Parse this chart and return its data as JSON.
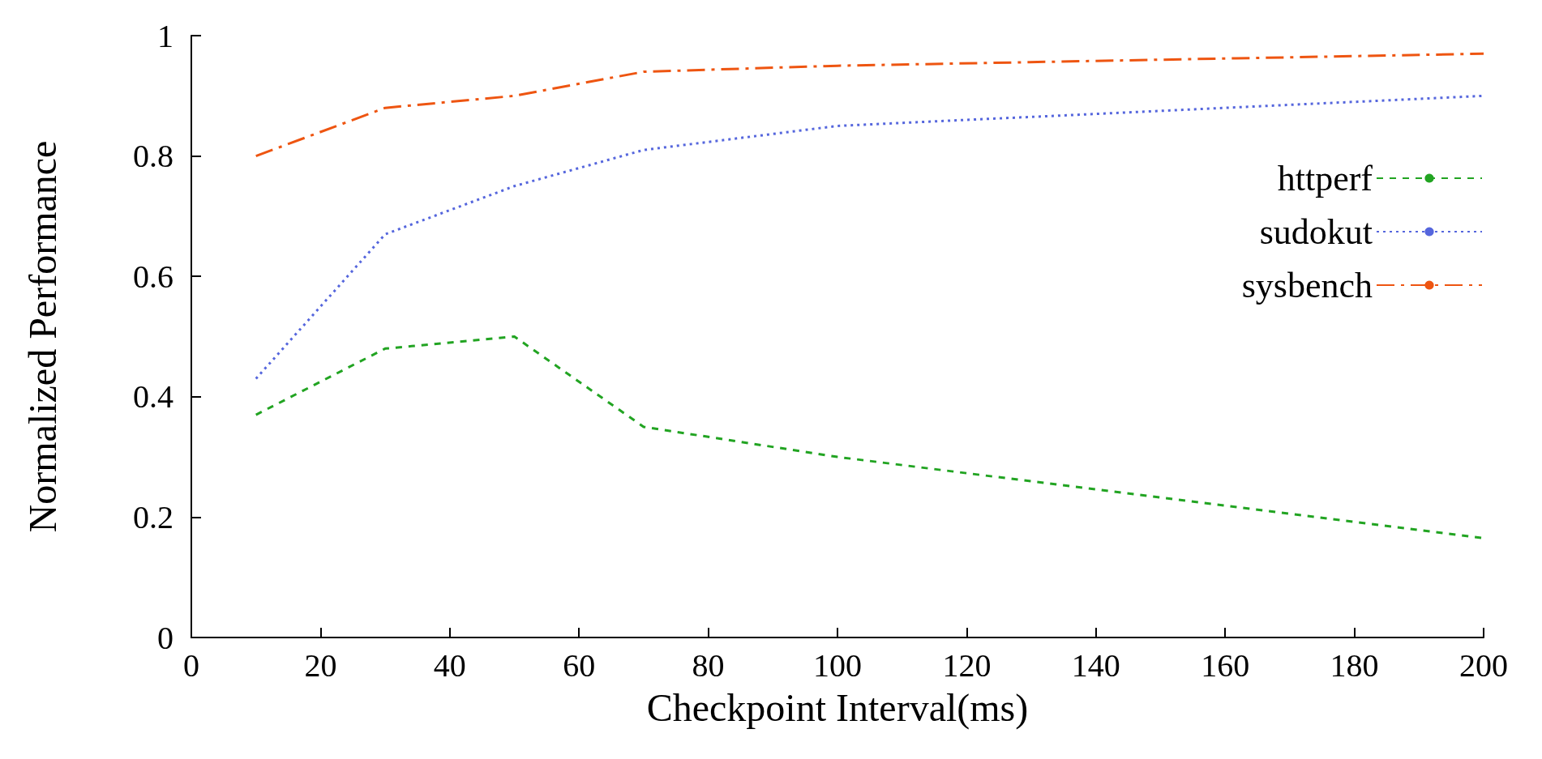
{
  "chart_data": {
    "type": "line",
    "xlabel": "Checkpoint Interval(ms)",
    "ylabel": "Normalized Performance",
    "xlim": [
      0,
      200
    ],
    "xticks": [
      0,
      20,
      40,
      60,
      80,
      100,
      120,
      140,
      160,
      180,
      200
    ],
    "ylim": [
      0,
      1
    ],
    "yticks": [
      0,
      0.2,
      0.4,
      0.6,
      0.8,
      1
    ],
    "grid": false,
    "legend": "right",
    "marker": "none",
    "series": [
      {
        "name": "httperf",
        "color": "#22a422",
        "line_style": "dashed",
        "x": [
          10,
          30,
          50,
          70,
          100,
          200
        ],
        "values": [
          0.37,
          0.48,
          0.5,
          0.35,
          0.3,
          0.165
        ]
      },
      {
        "name": "sudokut",
        "color": "#5566dd",
        "line_style": "dotted",
        "x": [
          10,
          30,
          50,
          70,
          100,
          150,
          200
        ],
        "values": [
          0.43,
          0.67,
          0.75,
          0.81,
          0.85,
          0.875,
          0.9
        ]
      },
      {
        "name": "sysbench",
        "color": "#ee5511",
        "line_style": "dashdot",
        "x": [
          10,
          30,
          50,
          70,
          100,
          200
        ],
        "values": [
          0.8,
          0.88,
          0.9,
          0.94,
          0.95,
          0.97
        ]
      }
    ]
  }
}
